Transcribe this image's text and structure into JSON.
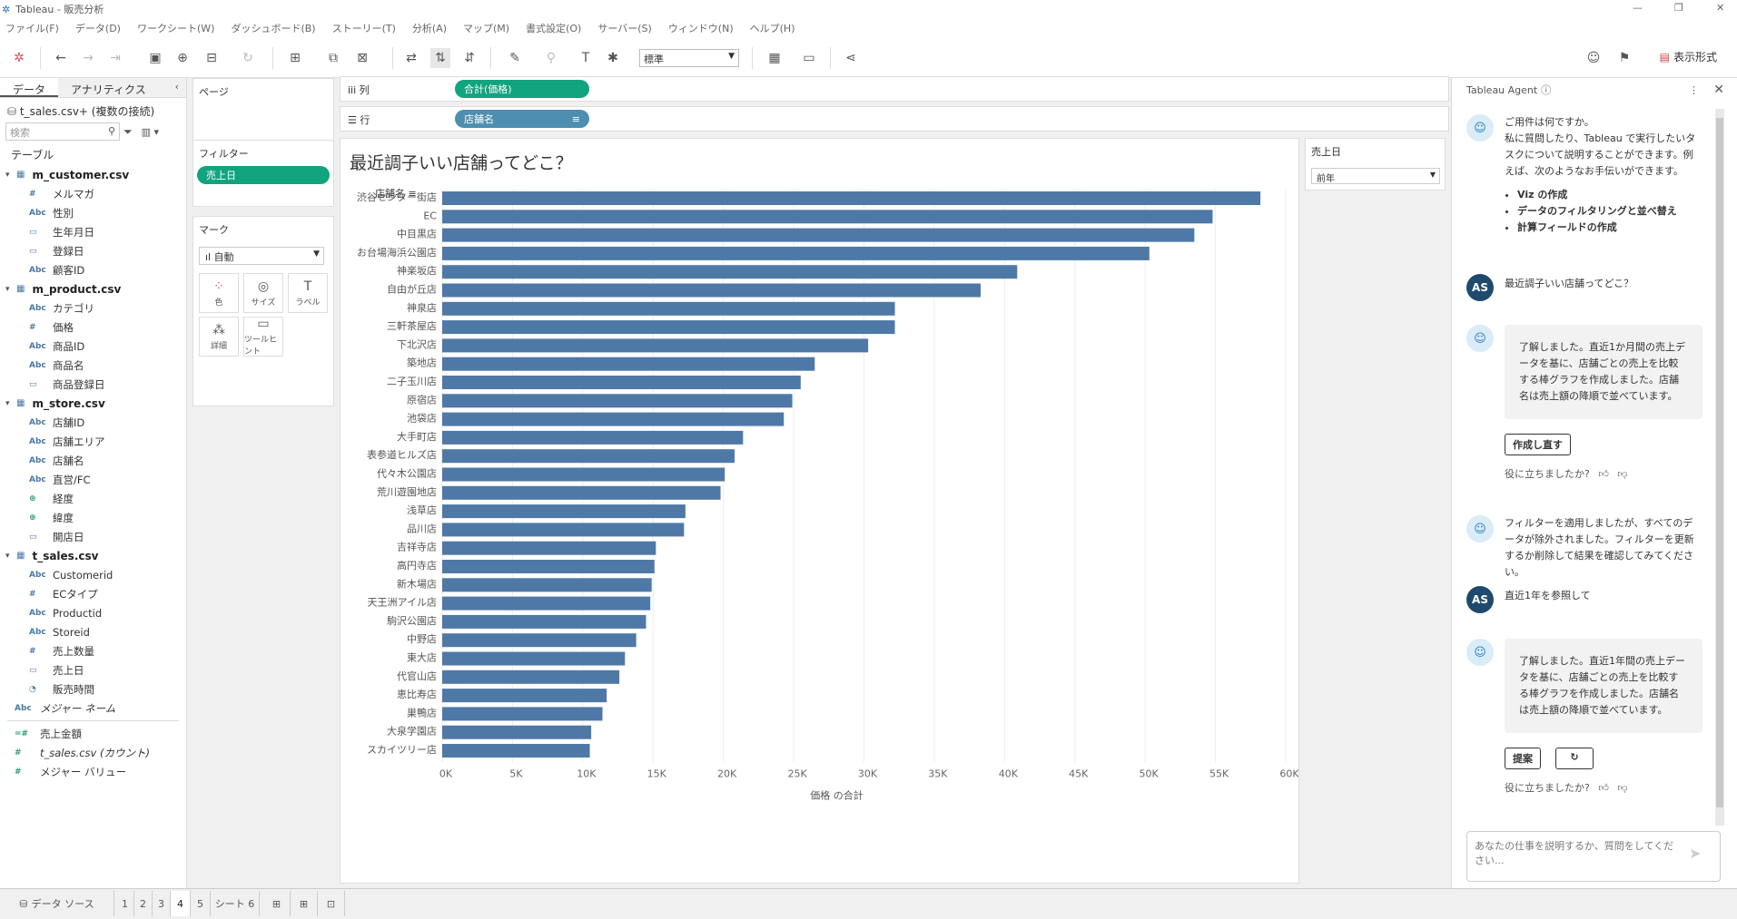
{
  "window": {
    "title": "Tableau - 販売分析"
  },
  "menu": [
    "ファイル(F)",
    "データ(D)",
    "ワークシート(W)",
    "ダッシュボード(B)",
    "ストーリー(T)",
    "分析(A)",
    "マップ(M)",
    "書式設定(O)",
    "サーバー(S)",
    "ウィンドウ(N)",
    "ヘルプ(H)"
  ],
  "toolbar": {
    "fit_select": "標準",
    "show_me": "表示形式"
  },
  "datapane": {
    "tabs": [
      "データ",
      "アナリティクス"
    ],
    "connection": "t_sales.csv+ (複数の接続)",
    "search_placeholder": "検索",
    "section": "テーブル",
    "tables": [
      {
        "name": "m_customer.csv",
        "fields": [
          {
            "type": "#",
            "name": "メルマガ"
          },
          {
            "type": "Abc",
            "name": "性別"
          },
          {
            "type": "date",
            "name": "生年月日"
          },
          {
            "type": "date",
            "name": "登録日"
          },
          {
            "type": "Abc",
            "name": "顧客ID"
          }
        ]
      },
      {
        "name": "m_product.csv",
        "fields": [
          {
            "type": "Abc",
            "name": "カテゴリ"
          },
          {
            "type": "#",
            "name": "価格"
          },
          {
            "type": "Abc",
            "name": "商品ID"
          },
          {
            "type": "Abc",
            "name": "商品名"
          },
          {
            "type": "date",
            "name": "商品登録日"
          }
        ]
      },
      {
        "name": "m_store.csv",
        "fields": [
          {
            "type": "Abc",
            "name": "店舗ID"
          },
          {
            "type": "Abc",
            "name": "店舗エリア"
          },
          {
            "type": "Abc",
            "name": "店舗名"
          },
          {
            "type": "Abc",
            "name": "直営/FC"
          },
          {
            "type": "geo",
            "name": "経度"
          },
          {
            "type": "geo",
            "name": "緯度"
          },
          {
            "type": "date",
            "name": "開店日"
          }
        ]
      },
      {
        "name": "t_sales.csv",
        "fields": [
          {
            "type": "Abc",
            "name": "Customerid"
          },
          {
            "type": "#",
            "name": "ECタイプ"
          },
          {
            "type": "Abc",
            "name": "Productid"
          },
          {
            "type": "Abc",
            "name": "Storeid"
          },
          {
            "type": "#",
            "name": "売上数量"
          },
          {
            "type": "date",
            "name": "売上日"
          },
          {
            "type": "datetime",
            "name": "販売時間"
          }
        ]
      }
    ],
    "measure_names": "メジャー ネーム",
    "extra_fields": [
      {
        "type": "calc",
        "name": "売上金額"
      },
      {
        "type": "#",
        "name": "t_sales.csv (カウント)"
      },
      {
        "type": "#",
        "name": "メジャー バリュー"
      }
    ]
  },
  "pages": {
    "label": "ページ"
  },
  "filters": {
    "label": "フィルター",
    "pill": "売上日"
  },
  "marks": {
    "label": "マーク",
    "type": "自動",
    "buttons": [
      "色",
      "サイズ",
      "ラベル",
      "詳細",
      "ツールヒント"
    ]
  },
  "shelves": {
    "columns_label": "列",
    "columns_pill": "合計(価格)",
    "rows_label": "行",
    "rows_pill": "店舗名"
  },
  "viz": {
    "title": "最近調子いい店舗ってどこ？",
    "row_header": "店舗名"
  },
  "chart_data": {
    "type": "bar",
    "orientation": "horizontal",
    "categories": [
      "渋谷センター街店",
      "EC",
      "中目黒店",
      "お台場海浜公園店",
      "神楽坂店",
      "自由が丘店",
      "神泉店",
      "三軒茶屋店",
      "下北沢店",
      "築地店",
      "二子玉川店",
      "原宿店",
      "池袋店",
      "大手町店",
      "表参道ヒルズ店",
      "代々木公園店",
      "荒川遊園地店",
      "浅草店",
      "品川店",
      "吉祥寺店",
      "高円寺店",
      "新木場店",
      "天王洲アイル店",
      "駒沢公園店",
      "中野店",
      "東大店",
      "代官山店",
      "恵比寿店",
      "巣鴨店",
      "大泉学園店",
      "スカイツリー店"
    ],
    "values": [
      58200,
      54800,
      53500,
      50300,
      40900,
      38300,
      32200,
      32200,
      30300,
      26500,
      25500,
      24900,
      24300,
      21400,
      20800,
      20100,
      19800,
      17300,
      17200,
      15200,
      15100,
      14900,
      14800,
      14500,
      13800,
      13000,
      12600,
      11700,
      11400,
      10600,
      10500
    ],
    "xlabel": "価格 の合計",
    "xticks": [
      "0K",
      "5K",
      "10K",
      "15K",
      "20K",
      "25K",
      "30K",
      "35K",
      "40K",
      "45K",
      "50K",
      "55K",
      "60K"
    ],
    "xlim": [
      0,
      60000
    ],
    "color": "#4e79a7",
    "grid": true
  },
  "date_filter": {
    "label": "売上日",
    "value": "前年"
  },
  "agent": {
    "title": "Tableau Agent",
    "greeting": "ご用件は何ですか。",
    "greeting_body": "私に質問したり、Tableau で実行したいタスクについて説明することができます。例えば、次のようなお手伝いができます。",
    "capabilities": [
      "Viz の作成",
      "データのフィルタリングと並べ替え",
      "計算フィールドの作成"
    ],
    "user_initials": "AS",
    "user_msg_1": "最近調子いい店舗ってどこ？",
    "bot_msg_1": "了解しました。直近1か月間の売上データを基に、店舗ごとの売上を比較する棒グラフを作成しました。店舗名は売上額の降順で並べています。",
    "redo_button": "作成し直す",
    "helpful": "役に立ちましたか?",
    "bot_msg_2": "フィルターを適用しましたが、すべてのデータが除外されました。フィルターを更新するか削除して結果を確認してみてください。",
    "user_msg_2": "直近1年を参照して",
    "bot_msg_3": "了解しました。直近1年間の売上データを基に、店舗ごとの売上を比較する棒グラフを作成しました。店舗名は売上額の降順で並べています。",
    "suggest_button": "提案",
    "input_placeholder": "あなたの仕事を説明するか、質問をしてください..."
  },
  "sheets": {
    "datasource": "データ ソース",
    "tabs": [
      "1",
      "2",
      "3",
      "4",
      "5",
      "シート 6"
    ],
    "active": "4"
  }
}
